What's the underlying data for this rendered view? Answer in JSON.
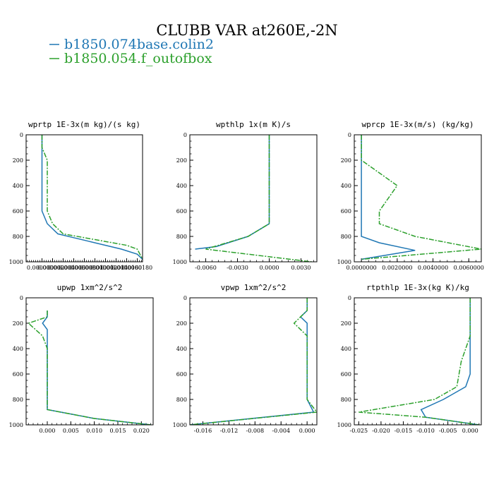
{
  "title": "CLUBB VAR at260E,-2N",
  "legend": [
    {
      "label": "b1850.074base.colin2",
      "color": "#1f77b4",
      "dash": "solid"
    },
    {
      "label": "b1850.054.f_outofbox",
      "color": "#2ca02c",
      "dash": "dashdot"
    }
  ],
  "chart_data": [
    {
      "type": "line",
      "title": "wprtp  1E-3x(m kg)/(s kg)",
      "xlim": [
        -3e-06,
        1.9e-05
      ],
      "ylim": [
        1000,
        0
      ],
      "xticks": [
        0,
        2e-06,
        4e-06,
        6e-06,
        8e-06,
        1e-05,
        1.2e-05,
        1.4e-05,
        1.6e-05,
        1.8e-05
      ],
      "xtick_labels": [
        "0.0000000",
        "0.0000020",
        "0.0000040",
        "0.0000060",
        "0.0000080",
        "0.0000100",
        "0.0000120",
        "0.0000140",
        "0.0000160",
        "0.0000180"
      ],
      "yticks": [
        0,
        200,
        400,
        600,
        800,
        1000
      ],
      "series": [
        {
          "name": "b1850.074base.colin2",
          "x": [
            0,
            0,
            0,
            0,
            0,
            0,
            0,
            1e-06,
            3e-06,
            6e-06,
            9e-06,
            1.2e-05,
            1.5e-05,
            1.8e-05,
            1.9e-05
          ],
          "y": [
            0,
            100,
            200,
            300,
            400,
            500,
            600,
            700,
            780,
            810,
            840,
            870,
            900,
            940,
            980
          ]
        },
        {
          "name": "b1850.054.f_outofbox",
          "x": [
            0,
            0,
            1e-06,
            1e-06,
            1e-06,
            1e-06,
            1e-06,
            2e-06,
            4e-06,
            8e-06,
            1.2e-05,
            1.6e-05,
            1.8e-05,
            1.9e-05
          ],
          "y": [
            0,
            100,
            200,
            300,
            400,
            500,
            600,
            700,
            780,
            810,
            840,
            870,
            900,
            980
          ]
        }
      ]
    },
    {
      "type": "line",
      "title": "wpthlp  1x(m K)/s",
      "xlim": [
        -0.0075,
        0.0045
      ],
      "ylim": [
        1000,
        0
      ],
      "xticks": [
        -0.006,
        -0.003,
        0,
        0.003
      ],
      "xtick_labels": [
        "-0.0060",
        "-0.0030",
        "0.0000",
        "0.0030"
      ],
      "yticks": [
        0,
        200,
        400,
        600,
        800,
        1000
      ],
      "series": [
        {
          "name": "b1850.074base.colin2",
          "x": [
            0,
            0,
            0,
            0,
            0,
            0,
            -0.002,
            -0.005,
            -0.007
          ],
          "y": [
            0,
            200,
            300,
            400,
            500,
            700,
            800,
            880,
            900
          ]
        },
        {
          "name": "b1850.054.f_outofbox",
          "x": [
            0,
            0,
            0,
            0,
            0,
            0,
            -0.002,
            -0.006,
            0.004
          ],
          "y": [
            0,
            200,
            300,
            400,
            500,
            700,
            800,
            900,
            1000
          ]
        }
      ]
    },
    {
      "type": "line",
      "title": "wprcp  1E-3x(m/s) (kg/kg)",
      "xlim": [
        -0.0004,
        0.0067
      ],
      "ylim": [
        1000,
        0
      ],
      "xticks": [
        0,
        0.002,
        0.004,
        0.006
      ],
      "xtick_labels": [
        "0.0000000",
        "0.0020000",
        "0.0040000",
        "0.0060000"
      ],
      "yticks": [
        0,
        200,
        400,
        600,
        800,
        1000
      ],
      "series": [
        {
          "name": "b1850.074base.colin2",
          "x": [
            0,
            0,
            0,
            0,
            0,
            0,
            0.001,
            0.003,
            0
          ],
          "y": [
            0,
            200,
            400,
            600,
            700,
            800,
            850,
            910,
            980
          ]
        },
        {
          "name": "b1850.054.f_outofbox",
          "x": [
            0,
            0,
            0.001,
            0.002,
            0.001,
            0.001,
            0.003,
            0.0067,
            0
          ],
          "y": [
            0,
            200,
            300,
            400,
            600,
            700,
            800,
            900,
            980
          ]
        }
      ]
    },
    {
      "type": "line",
      "title": "upwp  1xm^2/s^2",
      "xlim": [
        -0.0045,
        0.0225
      ],
      "ylim": [
        1000,
        0
      ],
      "xticks": [
        0,
        0.005,
        0.01,
        0.015,
        0.02
      ],
      "xtick_labels": [
        "0.000",
        "0.005",
        "0.010",
        "0.015",
        "0.020"
      ],
      "yticks": [
        0,
        200,
        400,
        600,
        800,
        1000
      ],
      "series": [
        {
          "name": "b1850.074base.colin2",
          "x": [
            0,
            0,
            -0.001,
            0,
            0,
            0,
            0,
            0.01,
            0.022
          ],
          "y": [
            100,
            150,
            200,
            250,
            300,
            500,
            880,
            950,
            1000
          ]
        },
        {
          "name": "b1850.054.f_outofbox",
          "x": [
            0,
            0,
            -0.004,
            -0.001,
            0,
            0,
            0,
            0.01,
            0.022
          ],
          "y": [
            100,
            150,
            200,
            300,
            400,
            600,
            880,
            950,
            1000
          ]
        }
      ]
    },
    {
      "type": "line",
      "title": "vpwp  1xm^2/s^2",
      "xlim": [
        -0.018,
        0.0015
      ],
      "ylim": [
        1000,
        0
      ],
      "xticks": [
        -0.016,
        -0.012,
        -0.008,
        -0.004,
        0
      ],
      "xtick_labels": [
        "-0.016",
        "-0.012",
        "-0.008",
        "-0.004",
        "0.000"
      ],
      "yticks": [
        0,
        200,
        400,
        600,
        800,
        1000
      ],
      "series": [
        {
          "name": "b1850.074base.colin2",
          "x": [
            0,
            0,
            -0.001,
            0,
            0,
            0,
            0,
            0.001,
            -0.018
          ],
          "y": [
            0,
            100,
            150,
            200,
            300,
            500,
            800,
            900,
            1000
          ]
        },
        {
          "name": "b1850.054.f_outofbox",
          "x": [
            0,
            0,
            -0.002,
            0,
            0,
            0,
            0,
            0.0015,
            -0.018
          ],
          "y": [
            0,
            100,
            200,
            300,
            400,
            600,
            800,
            900,
            1000
          ]
        }
      ]
    },
    {
      "type": "line",
      "title": "rtpthlp  1E-3x(kg K)/kg",
      "xlim": [
        -0.026,
        0.0025
      ],
      "ylim": [
        1000,
        0
      ],
      "xticks": [
        -0.025,
        -0.02,
        -0.015,
        -0.01,
        -0.005,
        0
      ],
      "xtick_labels": [
        "-0.025",
        "-0.020",
        "-0.015",
        "-0.010",
        "-0.005",
        "0.000"
      ],
      "yticks": [
        0,
        200,
        400,
        600,
        800,
        1000
      ],
      "series": [
        {
          "name": "b1850.074base.colin2",
          "x": [
            0,
            0,
            0,
            0,
            -0.001,
            -0.006,
            -0.011,
            -0.01,
            0.002
          ],
          "y": [
            0,
            200,
            400,
            600,
            700,
            800,
            880,
            940,
            1000
          ]
        },
        {
          "name": "b1850.054.f_outofbox",
          "x": [
            0,
            0,
            0,
            -0.002,
            -0.003,
            -0.008,
            -0.025,
            -0.01,
            0.002
          ],
          "y": [
            0,
            200,
            300,
            500,
            700,
            800,
            900,
            940,
            1000
          ]
        }
      ]
    }
  ]
}
